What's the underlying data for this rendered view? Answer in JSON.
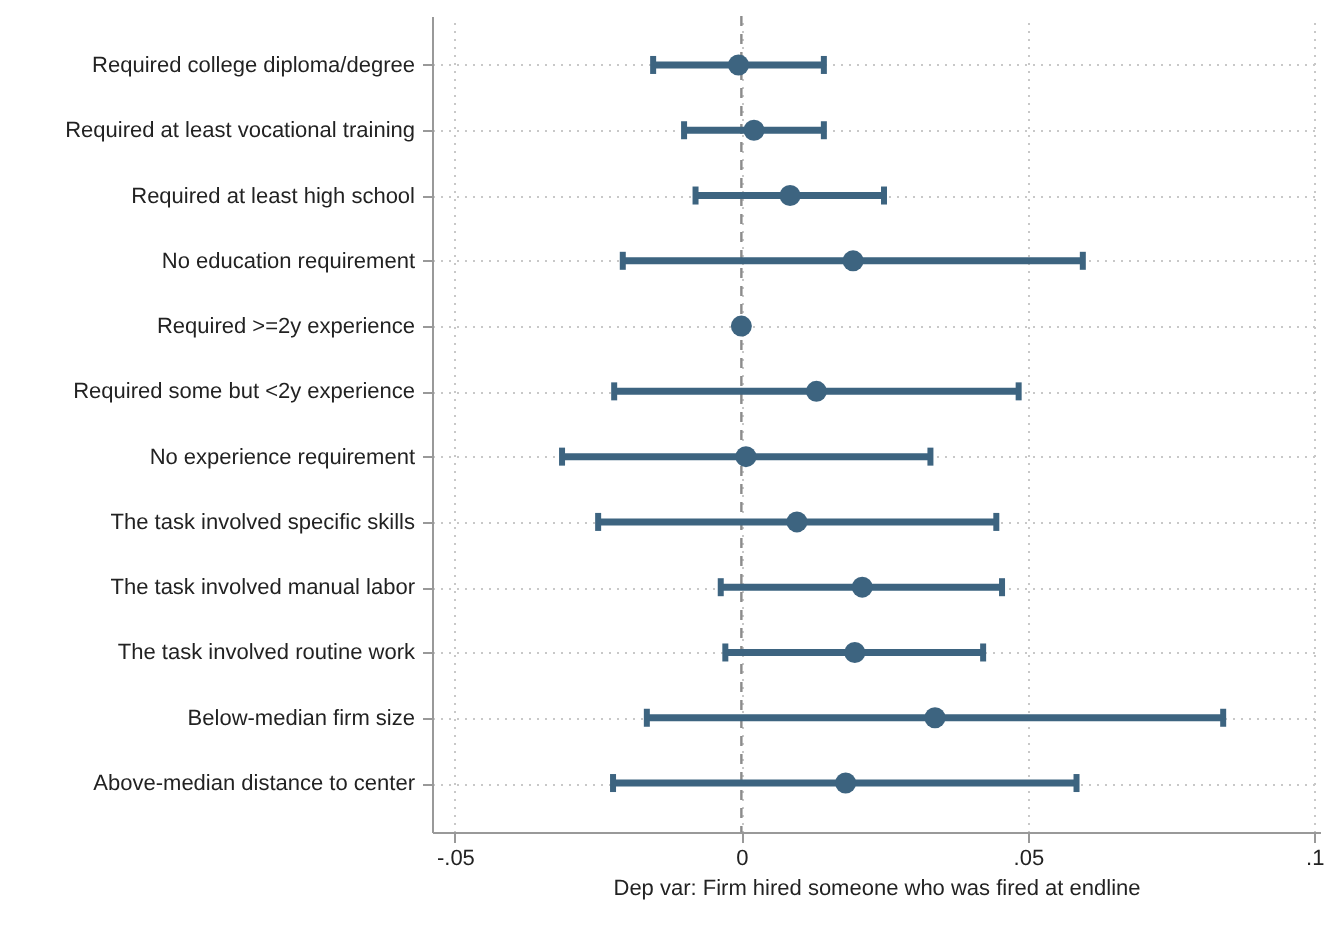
{
  "chart_data": {
    "type": "scatter",
    "orientation": "horizontal",
    "categories": [
      "Required college diploma/degree",
      "Required at least vocational training",
      "Required at least high school",
      "No education requirement",
      "Required >=2y experience",
      "Required some but <2y experience",
      "No experience requirement",
      "The task involved specific skills",
      "The task involved manual labor",
      "The task involved routine work",
      "Below-median firm size",
      "Above-median distance to center"
    ],
    "values": [
      -0.0005,
      0.0022,
      0.0085,
      0.0195,
      0,
      0.0131,
      0.0008,
      0.0097,
      0.0211,
      0.0198,
      0.0338,
      0.0182
    ],
    "errors": [
      [
        -0.0154,
        0.0144
      ],
      [
        -0.01,
        0.0144
      ],
      [
        -0.008,
        0.0249
      ],
      [
        -0.0207,
        0.0596
      ],
      null,
      [
        -0.0222,
        0.0484
      ],
      [
        -0.0313,
        0.033
      ],
      [
        -0.025,
        0.0445
      ],
      [
        -0.0036,
        0.0455
      ],
      [
        -0.0028,
        0.0422
      ],
      [
        -0.0165,
        0.0841
      ],
      [
        -0.0224,
        0.0585
      ]
    ],
    "color": "#3d6480",
    "marker": "circle",
    "xlim": [
      -0.054,
      0.101
    ],
    "xticks": [
      {
        "value": -0.05,
        "label": "-.05"
      },
      0,
      {
        "value": 0.05,
        "label": ".05"
      },
      {
        "value": 0.1,
        "label": ".1"
      }
    ],
    "xlabel": "Dep var: Firm hired someone who was fired at endline",
    "grid": true,
    "ref_lines": [
      {
        "axis": "x",
        "value": 0,
        "line_style": "dashed",
        "color": "#8c8c8c"
      }
    ]
  }
}
